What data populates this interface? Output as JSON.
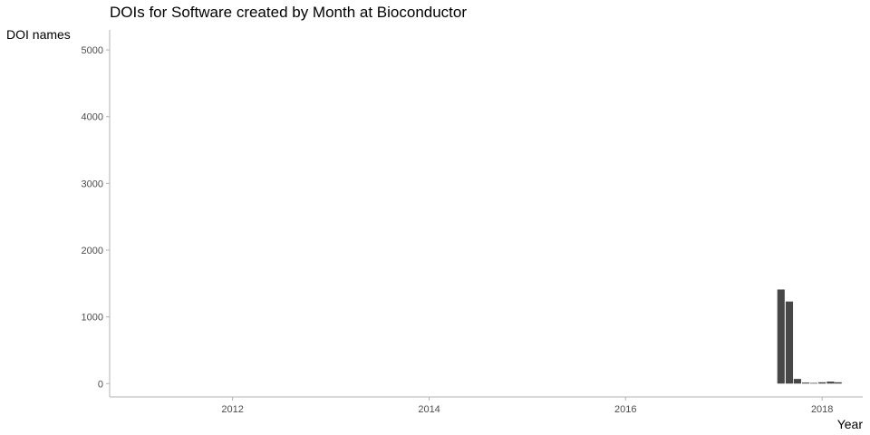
{
  "chart_data": {
    "type": "bar",
    "title": "DOIs for Software created by Month at Bioconductor",
    "xlabel": "Year",
    "ylabel": "DOI names",
    "x_scale": "date",
    "xlim": [
      "2010-10-01",
      "2018-06-01"
    ],
    "ylim": [
      -200,
      5300
    ],
    "x_ticks": [
      {
        "value": "2012-01-01",
        "label": "2012"
      },
      {
        "value": "2014-01-01",
        "label": "2014"
      },
      {
        "value": "2016-01-01",
        "label": "2016"
      },
      {
        "value": "2018-01-01",
        "label": "2018"
      }
    ],
    "y_ticks": [
      {
        "value": 0,
        "label": "0"
      },
      {
        "value": 1000,
        "label": "1000"
      },
      {
        "value": 2000,
        "label": "2000"
      },
      {
        "value": 3000,
        "label": "3000"
      },
      {
        "value": 4000,
        "label": "4000"
      },
      {
        "value": 5000,
        "label": "5000"
      }
    ],
    "grid": false,
    "legend": "none",
    "bar_color": "#474747",
    "axis_color": "#b3b3b3",
    "data": [
      {
        "month": "2017-08",
        "value": 1410
      },
      {
        "month": "2017-09",
        "value": 1230
      },
      {
        "month": "2017-10",
        "value": 70
      },
      {
        "month": "2017-11",
        "value": 15
      },
      {
        "month": "2017-12",
        "value": 10
      },
      {
        "month": "2018-01",
        "value": 20
      },
      {
        "month": "2018-02",
        "value": 30
      },
      {
        "month": "2018-03",
        "value": 20
      }
    ]
  }
}
